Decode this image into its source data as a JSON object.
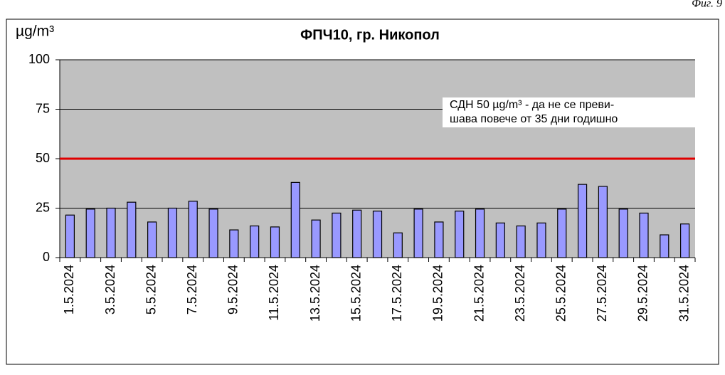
{
  "chart_data": {
    "type": "bar",
    "figure_label": "Фиг. 9",
    "title": "ФПЧ10, гр. Никопол",
    "y_axis_label": "µg/m³",
    "categories": [
      "1.5.2024",
      null,
      "3.5.2024",
      null,
      "5.5.2024",
      null,
      "7.5.2024",
      null,
      "9.5.2024",
      null,
      "11.5.2024",
      null,
      "13.5.2024",
      null,
      "15.5.2024",
      null,
      "17.5.2024",
      null,
      "19.5.2024",
      null,
      "21.5.2024",
      null,
      "23.5.2024",
      null,
      "25.5.2024",
      null,
      "27.5.2024",
      null,
      "29.5.2024",
      null,
      "31.5.2024"
    ],
    "values": [
      21.5,
      24.5,
      25,
      28,
      18,
      25,
      28.5,
      24.5,
      14,
      16,
      15.5,
      38,
      19,
      22.5,
      24,
      23.5,
      12.5,
      24.5,
      18,
      23.5,
      24.5,
      17.5,
      16,
      17.5,
      24.5,
      37,
      36,
      24.5,
      22.5,
      11.5,
      17
    ],
    "color": "#9999ff",
    "ylim": [
      0,
      100
    ],
    "yticks": [
      0,
      25,
      50,
      75,
      100
    ],
    "grid": true,
    "threshold": {
      "value": 50,
      "color": "#e00000"
    },
    "annotation": [
      "СДН 50 µg/m³ -  да не се преви-",
      "шава повече от 35 дни годишно"
    ]
  }
}
